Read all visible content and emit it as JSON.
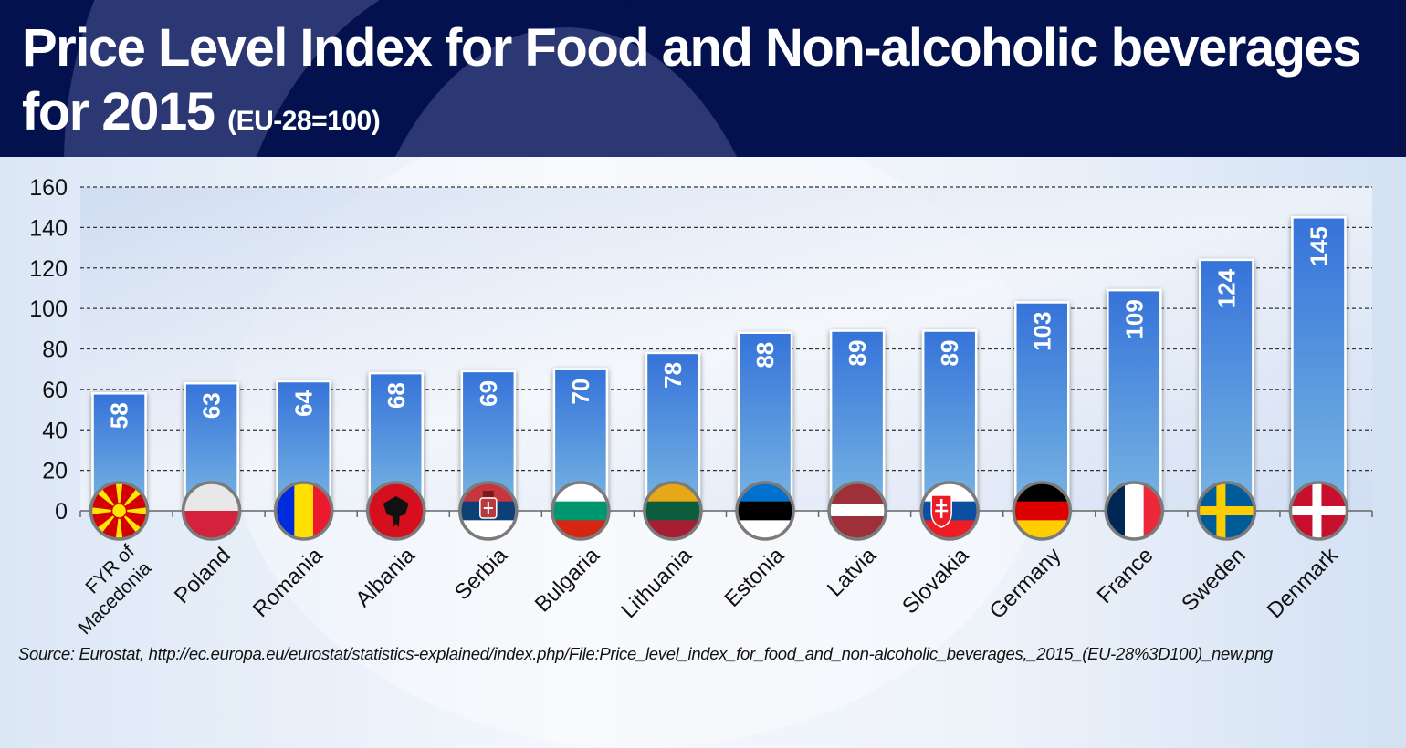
{
  "header": {
    "title_line1": "Price Level Index for Food and Non-alcoholic beverages",
    "title_line2": "for 2015",
    "title_suffix": "(EU-28=100)"
  },
  "source": "Source: Eurostat, http://ec.europa.eu/eurostat/statistics-explained/index.php/File:Price_level_index_for_food_and_non-alcoholic_beverages,_2015_(EU-28%3D100)_new.png",
  "colors": {
    "header_bg": "#03124f",
    "bar_top": "#3573d9",
    "bar_bottom": "#7ab6e3"
  },
  "chart_data": {
    "type": "bar",
    "title": "Price Level Index for Food and Non-alcoholic beverages for 2015 (EU-28=100)",
    "xlabel": "",
    "ylabel": "",
    "ylim": [
      0,
      160
    ],
    "yticks": [
      0,
      20,
      40,
      60,
      80,
      100,
      120,
      140,
      160
    ],
    "grid": true,
    "categories": [
      "FYR of Macedonia",
      "Poland",
      "Romania",
      "Albania",
      "Serbia",
      "Bulgaria",
      "Lithuania",
      "Estonia",
      "Latvia",
      "Slovakia",
      "Germany",
      "France",
      "Sweden",
      "Denmark"
    ],
    "category_lines": [
      [
        "FYR of",
        "Macedonia"
      ],
      [
        "Poland"
      ],
      [
        "Romania"
      ],
      [
        "Albania"
      ],
      [
        "Serbia"
      ],
      [
        "Bulgaria"
      ],
      [
        "Lithuania"
      ],
      [
        "Estonia"
      ],
      [
        "Latvia"
      ],
      [
        "Slovakia"
      ],
      [
        "Germany"
      ],
      [
        "France"
      ],
      [
        "Sweden"
      ],
      [
        "Denmark"
      ]
    ],
    "values": [
      58,
      63,
      64,
      68,
      69,
      70,
      78,
      88,
      89,
      89,
      103,
      109,
      124,
      145
    ],
    "flags": [
      "macedonia-flag",
      "poland-flag",
      "romania-flag",
      "albania-flag",
      "serbia-flag",
      "bulgaria-flag",
      "lithuania-flag",
      "estonia-flag",
      "latvia-flag",
      "slovakia-flag",
      "germany-flag",
      "france-flag",
      "sweden-flag",
      "denmark-flag"
    ]
  }
}
